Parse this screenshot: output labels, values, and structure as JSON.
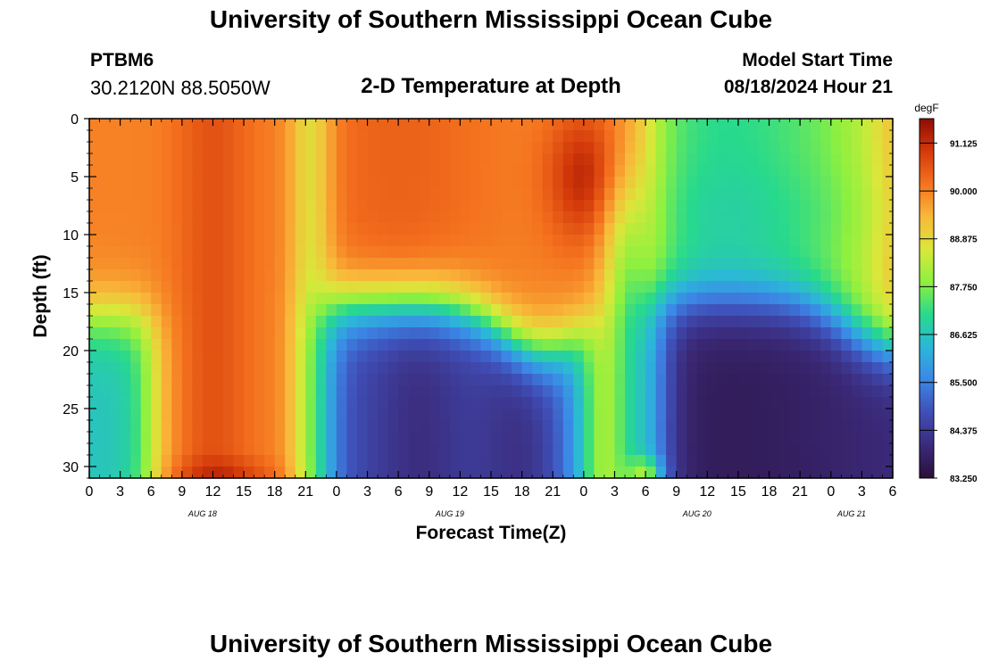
{
  "header": {
    "title": "University of Southern Mississippi Ocean Cube",
    "station_id": "PTBM6",
    "coordinates": "30.2120N  88.5050W",
    "plot_title": "2-D Temperature at Depth",
    "model_label": "Model Start Time",
    "model_start": "08/18/2024 Hour 21"
  },
  "footer": {
    "title": "University of Southern Mississippi Ocean Cube"
  },
  "chart_data": {
    "type": "heatmap",
    "title": "2-D Temperature at Depth",
    "xlabel": "Forecast Time(Z)",
    "ylabel": "Depth (ft)",
    "x_range_hours": [
      0,
      78
    ],
    "xtick_hours": [
      0,
      3,
      6,
      9,
      12,
      15,
      18,
      21,
      24,
      27,
      30,
      33,
      36,
      39,
      42,
      45,
      48,
      51,
      54,
      57,
      60,
      63,
      66,
      69,
      72,
      75,
      78
    ],
    "xtick_labels": [
      "0",
      "3",
      "6",
      "9",
      "12",
      "15",
      "18",
      "21",
      "0",
      "3",
      "6",
      "9",
      "12",
      "15",
      "18",
      "21",
      "0",
      "3",
      "6",
      "9",
      "12",
      "15",
      "18",
      "21",
      "0",
      "3",
      "6"
    ],
    "date_labels": [
      {
        "text": "AUG 18",
        "hour": 11
      },
      {
        "text": "AUG 19",
        "hour": 35
      },
      {
        "text": "AUG 20",
        "hour": 59
      },
      {
        "text": "AUG 21",
        "hour": 74
      }
    ],
    "y_range_ft": [
      0,
      31
    ],
    "ytick_values": [
      0,
      5,
      10,
      15,
      20,
      25,
      30
    ],
    "ytick_labels": [
      "0",
      "5",
      "10",
      "15",
      "20",
      "25",
      "30"
    ],
    "colorbar": {
      "unit": "degF",
      "min": 83.25,
      "max": 91.7,
      "tick_values": [
        91.125,
        90.0,
        88.875,
        87.75,
        86.625,
        85.5,
        84.375,
        83.25
      ],
      "tick_labels": [
        "91.125",
        "90.000",
        "88.875",
        "87.750",
        "86.625",
        "85.500",
        "84.375",
        "83.250"
      ],
      "colors": [
        "#2a0f3a",
        "#3b2a7a",
        "#3f4fb8",
        "#3c86e6",
        "#2bb7d9",
        "#27d98d",
        "#8ef03f",
        "#d9e83a",
        "#f9b83a",
        "#f5731f",
        "#d43a0a",
        "#8e0b04"
      ]
    },
    "temperature_features": [
      {
        "name": "warm column",
        "hours": [
          9,
          16
        ],
        "depths_ft": [
          0,
          31
        ],
        "temp_degF": 91.0
      },
      {
        "name": "cool band",
        "hours": [
          0,
          6
        ],
        "depths_ft": [
          17,
          30
        ],
        "temp_degF": 87.0
      },
      {
        "name": "cool pool",
        "hours": [
          22,
          50
        ],
        "depths_ft": [
          17,
          31
        ],
        "temp_degF": 85.0
      },
      {
        "name": "hot core",
        "hours": [
          44,
          51
        ],
        "depths_ft": [
          0,
          12
        ],
        "temp_degF": 91.6
      },
      {
        "name": "cold pool",
        "hours": [
          55,
          78
        ],
        "depths_ft": [
          17,
          31
        ],
        "temp_degF": 83.5
      },
      {
        "name": "mild layer",
        "hours": [
          58,
          72
        ],
        "depths_ft": [
          0,
          16
        ],
        "temp_degF": 87.6
      }
    ]
  }
}
